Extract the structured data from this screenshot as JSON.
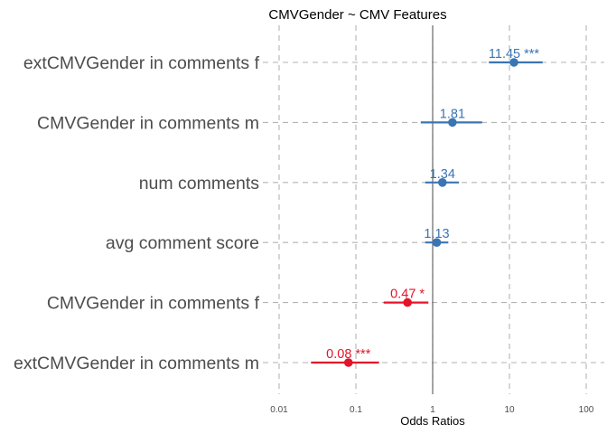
{
  "colors": {
    "positive": "#3a75b3",
    "negative": "#e3142a",
    "grid": "#b3b3b3",
    "reference_line": "#4d4d4d",
    "label_text": "#4d4d4d"
  },
  "chart_data": {
    "type": "forest",
    "title": "CMVGender  ~  CMV Features",
    "xlabel": "Odds Ratios",
    "x_scale": "log",
    "xlim": [
      0.01,
      100
    ],
    "x_ticks": [
      {
        "value": 0.01,
        "label": "0.01"
      },
      {
        "value": 0.1,
        "label": "0.1"
      },
      {
        "value": 1,
        "label": "1"
      },
      {
        "value": 10,
        "label": "10"
      },
      {
        "value": 100,
        "label": "100"
      }
    ],
    "reference_value": 1,
    "grid": true,
    "terms": [
      {
        "name": "extCMVGender in comments f",
        "estimate": 11.45,
        "ci": [
          5.4,
          27.0
        ],
        "label": "11.45 ***",
        "direction": "positive"
      },
      {
        "name": "CMVGender in comments m",
        "estimate": 1.81,
        "ci": [
          0.7,
          4.4
        ],
        "label": "1.81",
        "direction": "positive"
      },
      {
        "name": "num comments",
        "estimate": 1.34,
        "ci": [
          0.8,
          2.2
        ],
        "label": "1.34",
        "direction": "positive"
      },
      {
        "name": "avg comment score",
        "estimate": 1.13,
        "ci": [
          0.8,
          1.6
        ],
        "label": "1.13",
        "direction": "positive"
      },
      {
        "name": "CMVGender in comments f",
        "estimate": 0.47,
        "ci": [
          0.23,
          0.88
        ],
        "label": "0.47 *",
        "direction": "negative"
      },
      {
        "name": "extCMVGender in comments m",
        "estimate": 0.08,
        "ci": [
          0.026,
          0.2
        ],
        "label": "0.08 ***",
        "direction": "negative"
      }
    ]
  }
}
